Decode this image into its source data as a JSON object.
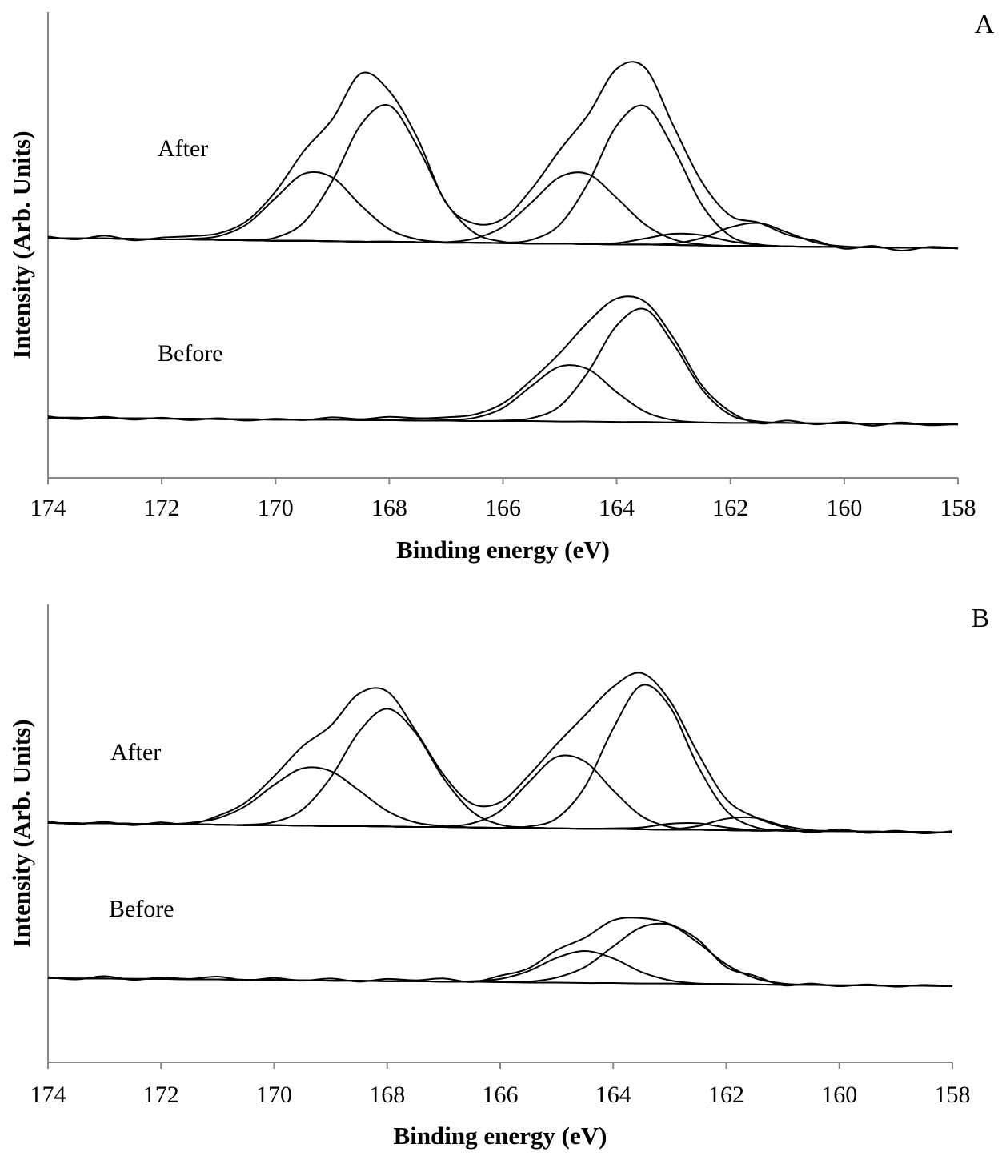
{
  "chart_data": [
    {
      "type": "line",
      "panel_label": "A",
      "xlabel": "Binding energy (eV)",
      "ylabel": "Intensity (Arb. Units)",
      "annotations": [
        "After",
        "Before"
      ],
      "xlim": [
        174,
        158
      ],
      "xticks": [
        174,
        172,
        170,
        168,
        166,
        164,
        162,
        160,
        158
      ],
      "ylim": [
        0,
        100
      ],
      "x": [
        174,
        173.5,
        173,
        172.5,
        172,
        171.5,
        171,
        170.5,
        170,
        169.5,
        169,
        168.5,
        168,
        167.5,
        167,
        166.5,
        166,
        165.5,
        165,
        164.5,
        164,
        163.5,
        163,
        162.5,
        162,
        161.5,
        161,
        160.5,
        160,
        159.5,
        159,
        158.5,
        158
      ],
      "series": [
        {
          "color": "#000000",
          "values": [
            51.8,
            51.2,
            52.0,
            51.0,
            51.6,
            51.9,
            52.5,
            55.2,
            61.5,
            70.2,
            77.0,
            86.8,
            83.0,
            72.8,
            59.0,
            54.6,
            55.6,
            62.0,
            70.4,
            78.0,
            87.8,
            88.0,
            75.5,
            63.5,
            56.3,
            54.8,
            52.2,
            50.9,
            49.2,
            49.8,
            48.8,
            49.6,
            49.3
          ]
        },
        {
          "color": "#000000",
          "values": [
            51.5,
            51.4,
            51.4,
            51.3,
            51.2,
            51.2,
            51.1,
            51.0,
            50.9,
            50.9,
            50.8,
            50.7,
            50.7,
            50.6,
            50.5,
            50.5,
            50.4,
            50.3,
            50.3,
            50.2,
            50.1,
            50.1,
            50.0,
            49.9,
            49.8,
            49.8,
            49.7,
            49.6,
            49.6,
            49.5,
            49.4,
            49.4,
            49.3
          ]
        },
        {
          "color": "#000000",
          "values": [
            51.5,
            51.4,
            51.4,
            51.3,
            51.2,
            51.3,
            51.9,
            54.5,
            60.1,
            65.3,
            64.5,
            58.5,
            53.4,
            51.2,
            50.6,
            50.5,
            50.4,
            50.3,
            50.3,
            50.2,
            50.1,
            50.1,
            50.0,
            49.9,
            49.8,
            49.8,
            49.7,
            49.6,
            49.6,
            49.5,
            49.4,
            49.4,
            49.3
          ]
        },
        {
          "color": "#000000",
          "values": [
            51.5,
            51.4,
            51.4,
            51.3,
            51.2,
            51.2,
            51.1,
            51.1,
            51.6,
            54.9,
            63.8,
            75.8,
            79.9,
            71.0,
            59.1,
            52.6,
            50.7,
            50.3,
            50.3,
            50.2,
            50.1,
            50.1,
            50.0,
            49.9,
            49.8,
            49.8,
            49.7,
            49.6,
            49.6,
            49.5,
            49.4,
            49.4,
            49.3
          ]
        },
        {
          "color": "#000000",
          "values": [
            51.5,
            51.4,
            51.4,
            51.3,
            51.2,
            51.2,
            51.1,
            51.0,
            50.9,
            50.9,
            50.8,
            50.7,
            50.7,
            50.6,
            50.6,
            51.4,
            53.9,
            59.1,
            64.6,
            65.2,
            60.1,
            54.4,
            51.2,
            50.1,
            49.8,
            49.8,
            49.7,
            49.6,
            49.6,
            49.5,
            49.4,
            49.4,
            49.3
          ]
        },
        {
          "color": "#000000",
          "values": [
            51.5,
            51.4,
            51.4,
            51.3,
            51.2,
            51.2,
            51.1,
            51.0,
            50.9,
            50.9,
            50.8,
            50.7,
            50.7,
            50.6,
            50.5,
            50.5,
            50.5,
            51.1,
            54.4,
            63.4,
            75.6,
            79.8,
            70.7,
            58.6,
            51.9,
            50.1,
            49.7,
            49.6,
            49.6,
            49.5,
            49.4,
            49.4,
            49.3
          ]
        },
        {
          "color": "#000000",
          "values": [
            51.5,
            51.4,
            51.4,
            51.3,
            51.2,
            51.2,
            51.1,
            51.0,
            50.9,
            50.9,
            50.8,
            50.7,
            50.7,
            50.6,
            50.5,
            50.5,
            50.4,
            50.3,
            50.3,
            50.2,
            50.4,
            51.4,
            52.4,
            52.1,
            50.8,
            50.0,
            49.7,
            49.6,
            49.6,
            49.5,
            49.4,
            49.4,
            49.3
          ]
        },
        {
          "color": "#000000",
          "values": [
            51.5,
            51.4,
            51.4,
            51.3,
            51.2,
            51.2,
            51.1,
            51.0,
            50.9,
            50.9,
            50.8,
            50.7,
            50.7,
            50.6,
            50.5,
            50.5,
            50.4,
            50.3,
            50.3,
            50.2,
            50.1,
            50.1,
            50.3,
            51.5,
            53.8,
            54.7,
            52.7,
            50.5,
            49.7,
            49.5,
            49.4,
            49.4,
            49.3
          ]
        },
        {
          "color": "#000000",
          "values": [
            13.2,
            12.6,
            13.1,
            12.5,
            12.9,
            12.4,
            12.8,
            12.3,
            12.7,
            12.4,
            13.0,
            12.6,
            13.1,
            12.8,
            13.0,
            13.6,
            16.0,
            21.0,
            26.8,
            33.5,
            38.5,
            37.8,
            30.0,
            19.8,
            14.2,
            11.7,
            12.3,
            11.5,
            12.0,
            11.2,
            11.9,
            11.3,
            11.6
          ]
        },
        {
          "color": "#000000",
          "values": [
            12.9,
            12.9,
            12.8,
            12.8,
            12.7,
            12.7,
            12.6,
            12.6,
            12.5,
            12.5,
            12.5,
            12.4,
            12.4,
            12.3,
            12.3,
            12.2,
            12.2,
            12.2,
            12.1,
            12.1,
            12.0,
            12.0,
            11.9,
            11.9,
            11.8,
            11.8,
            11.8,
            11.7,
            11.7,
            11.6,
            11.6,
            11.5,
            11.5
          ]
        },
        {
          "color": "#000000",
          "values": [
            12.9,
            12.9,
            12.8,
            12.8,
            12.7,
            12.7,
            12.6,
            12.6,
            12.5,
            12.5,
            12.5,
            12.4,
            12.4,
            12.3,
            12.4,
            12.9,
            15.0,
            19.7,
            23.9,
            23.3,
            18.4,
            14.2,
            12.4,
            11.9,
            11.8,
            11.8,
            11.8,
            11.7,
            11.7,
            11.6,
            11.6,
            11.5,
            11.5
          ]
        },
        {
          "color": "#000000",
          "values": [
            12.9,
            12.9,
            12.8,
            12.8,
            12.7,
            12.7,
            12.6,
            12.6,
            12.5,
            12.5,
            12.5,
            12.4,
            12.4,
            12.3,
            12.3,
            12.2,
            12.3,
            12.8,
            15.4,
            22.8,
            32.7,
            36.2,
            28.7,
            19.0,
            13.5,
            12.1,
            11.8,
            11.7,
            11.7,
            11.6,
            11.6,
            11.5,
            11.5
          ]
        }
      ]
    },
    {
      "type": "line",
      "panel_label": "B",
      "xlabel": "Binding energy (eV)",
      "ylabel": "Intensity (Arb. Units)",
      "annotations": [
        "After",
        "Before"
      ],
      "xlim": [
        174,
        158
      ],
      "xticks": [
        174,
        172,
        170,
        168,
        166,
        164,
        162,
        160,
        158
      ],
      "ylim": [
        0,
        100
      ],
      "x": [
        174,
        173.5,
        173,
        172.5,
        172,
        171.5,
        171,
        170.5,
        170,
        169.5,
        169,
        168.5,
        168,
        167.5,
        167,
        166.5,
        166,
        165.5,
        165,
        164.5,
        164,
        163.5,
        163,
        162.5,
        162,
        161.5,
        161,
        160.5,
        160,
        159.5,
        159,
        158.5,
        158
      ],
      "series": [
        {
          "color": "#000000",
          "values": [
            52.6,
            52.0,
            52.5,
            51.8,
            52.4,
            52.0,
            53.8,
            56.8,
            62.5,
            69.0,
            73.5,
            80.5,
            81.0,
            72.5,
            62.8,
            56.5,
            56.8,
            62.6,
            69.5,
            75.8,
            82.0,
            85.0,
            79.0,
            67.5,
            57.5,
            53.6,
            51.4,
            50.2,
            50.9,
            50.1,
            50.6,
            50.0,
            50.5
          ]
        },
        {
          "color": "#000000",
          "values": [
            52.3,
            52.2,
            52.2,
            52.1,
            52.0,
            52.0,
            51.9,
            51.8,
            51.8,
            51.7,
            51.6,
            51.6,
            51.5,
            51.4,
            51.4,
            51.3,
            51.2,
            51.2,
            51.1,
            51.0,
            51.0,
            50.9,
            50.8,
            50.8,
            50.7,
            50.6,
            50.6,
            50.5,
            50.5,
            50.4,
            50.3,
            50.3,
            50.2
          ]
        },
        {
          "color": "#000000",
          "values": [
            52.3,
            52.2,
            52.2,
            52.1,
            52.0,
            52.3,
            53.3,
            56.0,
            60.6,
            64.2,
            63.6,
            59.4,
            54.9,
            52.4,
            51.6,
            51.3,
            51.2,
            51.2,
            51.1,
            51.0,
            51.0,
            50.9,
            50.8,
            50.8,
            50.7,
            50.6,
            50.6,
            50.5,
            50.5,
            50.4,
            50.3,
            50.3,
            50.2
          ]
        },
        {
          "color": "#000000",
          "values": [
            52.3,
            52.2,
            52.2,
            52.1,
            52.0,
            52.0,
            51.9,
            51.9,
            52.5,
            55.2,
            62.2,
            72.2,
            77.2,
            72.0,
            62.0,
            54.8,
            51.9,
            51.3,
            51.1,
            51.0,
            51.0,
            50.9,
            50.8,
            50.8,
            50.7,
            50.6,
            50.6,
            50.5,
            50.5,
            50.4,
            50.3,
            50.3,
            50.2
          ]
        },
        {
          "color": "#000000",
          "values": [
            52.3,
            52.2,
            52.2,
            52.1,
            52.0,
            52.0,
            51.9,
            51.8,
            51.8,
            51.7,
            51.6,
            51.6,
            51.5,
            51.4,
            51.5,
            52.2,
            54.9,
            61.1,
            66.7,
            65.7,
            59.4,
            53.8,
            51.4,
            50.8,
            50.7,
            50.6,
            50.6,
            50.5,
            50.5,
            50.4,
            50.3,
            50.3,
            50.2
          ]
        },
        {
          "color": "#000000",
          "values": [
            52.3,
            52.2,
            52.2,
            52.1,
            52.0,
            52.0,
            51.9,
            51.8,
            51.8,
            51.7,
            51.6,
            51.6,
            51.5,
            51.4,
            51.4,
            51.3,
            51.2,
            51.5,
            53.3,
            60.2,
            72.9,
            82.3,
            77.7,
            64.7,
            55.0,
            51.4,
            50.7,
            50.5,
            50.5,
            50.4,
            50.3,
            50.3,
            50.2
          ]
        },
        {
          "color": "#000000",
          "values": [
            52.3,
            52.2,
            52.2,
            52.1,
            52.0,
            52.0,
            51.9,
            51.8,
            51.8,
            51.7,
            51.6,
            51.6,
            51.5,
            51.4,
            51.4,
            51.3,
            51.2,
            51.2,
            51.1,
            51.0,
            51.1,
            51.3,
            52.1,
            52.2,
            51.3,
            50.7,
            50.6,
            50.5,
            50.5,
            50.4,
            50.3,
            50.3,
            50.2
          ]
        },
        {
          "color": "#000000",
          "values": [
            52.3,
            52.2,
            52.2,
            52.1,
            52.0,
            52.0,
            51.9,
            51.8,
            51.8,
            51.7,
            51.6,
            51.6,
            51.5,
            51.4,
            51.4,
            51.3,
            51.2,
            51.2,
            51.1,
            51.0,
            51.0,
            50.9,
            50.9,
            51.6,
            53.2,
            53.4,
            51.7,
            50.7,
            50.5,
            50.4,
            50.3,
            50.3,
            50.2
          ]
        },
        {
          "color": "#000000",
          "values": [
            18.6,
            18.1,
            18.8,
            18.0,
            18.5,
            18.2,
            18.7,
            17.9,
            18.4,
            17.8,
            18.3,
            17.6,
            18.2,
            17.9,
            18.3,
            17.5,
            18.9,
            20.5,
            24.5,
            27.2,
            31.0,
            31.5,
            30.2,
            26.8,
            20.8,
            18.9,
            16.8,
            17.2,
            16.6,
            17.0,
            16.5,
            16.9,
            16.6
          ]
        },
        {
          "color": "#000000",
          "values": [
            18.4,
            18.3,
            18.3,
            18.2,
            18.2,
            18.1,
            18.1,
            18.0,
            18.0,
            17.9,
            17.8,
            17.8,
            17.7,
            17.7,
            17.6,
            17.6,
            17.5,
            17.4,
            17.4,
            17.3,
            17.3,
            17.2,
            17.2,
            17.1,
            17.1,
            17.0,
            16.9,
            16.9,
            16.8,
            16.8,
            16.7,
            16.7,
            16.6
          ]
        },
        {
          "color": "#000000",
          "values": [
            18.4,
            18.3,
            18.3,
            18.2,
            18.2,
            18.1,
            18.1,
            18.0,
            18.0,
            17.9,
            17.8,
            17.8,
            17.7,
            17.7,
            17.6,
            17.7,
            18.2,
            19.9,
            22.8,
            24.3,
            22.7,
            19.7,
            17.9,
            17.2,
            17.1,
            17.0,
            16.9,
            16.9,
            16.8,
            16.8,
            16.7,
            16.7,
            16.6
          ]
        },
        {
          "color": "#000000",
          "values": [
            18.4,
            18.3,
            18.3,
            18.2,
            18.2,
            18.1,
            18.1,
            18.0,
            18.0,
            17.9,
            17.8,
            17.8,
            17.7,
            17.7,
            17.6,
            17.6,
            17.5,
            17.6,
            18.5,
            20.8,
            25.3,
            29.5,
            30.0,
            26.1,
            21.4,
            18.4,
            17.2,
            16.9,
            16.8,
            16.8,
            16.7,
            16.7,
            16.6
          ]
        }
      ]
    }
  ]
}
